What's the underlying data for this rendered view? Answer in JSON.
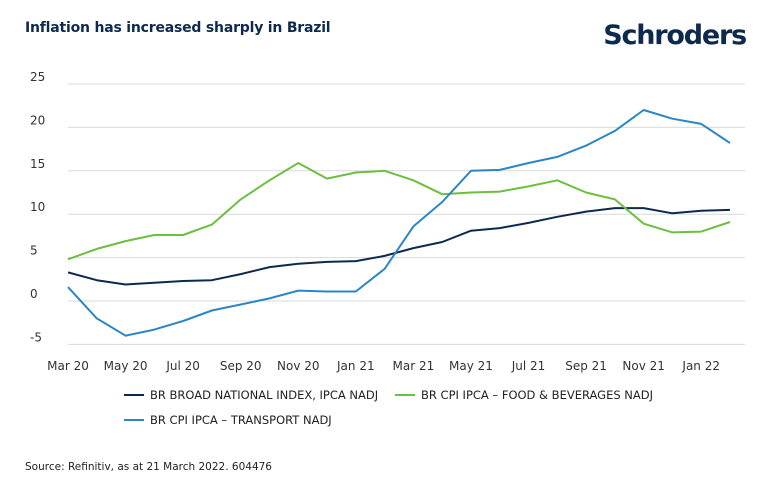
{
  "header": {
    "title": "Inflation has increased sharply in Brazil",
    "logo_text": "Schroders"
  },
  "footer": {
    "source": "Source: Refinitiv, as at 21 March 2022. 604476"
  },
  "colors": {
    "navy": "#0d2a4e",
    "green": "#6cbf3f",
    "blue": "#2b86c5",
    "grid": "#d9d9d9"
  },
  "chart_data": {
    "type": "line",
    "title": "Inflation has increased sharply in Brazil",
    "xlabel": "",
    "ylabel": "",
    "ylim": [
      -5,
      25
    ],
    "yticks": [
      -5,
      0,
      5,
      10,
      15,
      20,
      25
    ],
    "grid": true,
    "legend_position": "bottom",
    "x": [
      "Mar 20",
      "Apr 20",
      "May 20",
      "Jun 20",
      "Jul 20",
      "Aug 20",
      "Sep 20",
      "Oct 20",
      "Nov 20",
      "Dec 20",
      "Jan 21",
      "Feb 21",
      "Mar 21",
      "Apr 21",
      "May 21",
      "Jun 21",
      "Jul 21",
      "Aug 21",
      "Sep 21",
      "Oct 21",
      "Nov 21",
      "Dec 21",
      "Jan 22",
      "Feb 22"
    ],
    "xtick_labels": [
      "Mar 20",
      "May 20",
      "Jul 20",
      "Sep 20",
      "Nov 20",
      "Jan 21",
      "Mar 21",
      "May 21",
      "Jul 21",
      "Sep 21",
      "Nov 21",
      "Jan 22"
    ],
    "series": [
      {
        "name": "BR BROAD NATIONAL INDEX, IPCA NADJ",
        "color": "#0d2a4e",
        "values": [
          3.3,
          2.4,
          1.9,
          2.1,
          2.3,
          2.4,
          3.1,
          3.9,
          4.3,
          4.5,
          4.6,
          5.2,
          6.1,
          6.8,
          8.1,
          8.4,
          9.0,
          9.7,
          10.3,
          10.7,
          10.7,
          10.1,
          10.4,
          10.5
        ]
      },
      {
        "name": "BR CPI IPCA – FOOD & BEVERAGES NADJ",
        "color": "#6cbf3f",
        "values": [
          4.8,
          6.0,
          6.9,
          7.6,
          7.6,
          8.8,
          11.7,
          13.9,
          15.9,
          14.1,
          14.8,
          15.0,
          13.9,
          12.3,
          12.5,
          12.6,
          13.2,
          13.9,
          12.5,
          11.7,
          8.9,
          7.9,
          8.0,
          9.1
        ]
      },
      {
        "name": "BR CPI IPCA – TRANSPORT NADJ",
        "color": "#2b86c5",
        "values": [
          1.6,
          -2.0,
          -4.0,
          -3.3,
          -2.3,
          -1.1,
          -0.4,
          0.3,
          1.2,
          1.1,
          1.1,
          3.7,
          8.6,
          11.4,
          15.0,
          15.1,
          15.9,
          16.6,
          17.9,
          19.6,
          22.0,
          21.0,
          20.4,
          18.2
        ]
      }
    ]
  }
}
